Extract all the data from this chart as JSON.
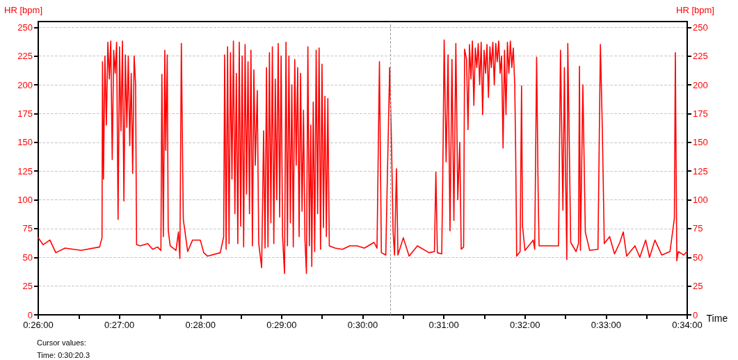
{
  "chart_data": {
    "type": "line",
    "xlabel": "Time",
    "ylabel": "HR [bpm]",
    "y2label": "HR [bpm]",
    "annotations": [
      "Cursor values:",
      "Time: 0:30:20.3"
    ],
    "xlim": [
      0.43333,
      0.56667
    ],
    "xticks": [
      {
        "value": 0.43333,
        "label": "0:26:00"
      },
      {
        "value": 0.44167,
        "label": null
      },
      {
        "value": 0.45,
        "label": "0:27:00"
      },
      {
        "value": 0.45833,
        "label": null
      },
      {
        "value": 0.46667,
        "label": "0:28:00"
      },
      {
        "value": 0.475,
        "label": null
      },
      {
        "value": 0.48333,
        "label": "0:29:00"
      },
      {
        "value": 0.49167,
        "label": null
      },
      {
        "value": 0.5,
        "label": "0:30:00"
      },
      {
        "value": 0.50833,
        "label": null
      },
      {
        "value": 0.51667,
        "label": "0:31:00"
      },
      {
        "value": 0.525,
        "label": null
      },
      {
        "value": 0.53333,
        "label": "0:32:00"
      },
      {
        "value": 0.54167,
        "label": null
      },
      {
        "value": 0.55,
        "label": "0:33:00"
      },
      {
        "value": 0.55833,
        "label": null
      },
      {
        "value": 0.56667,
        "label": "0:34:00"
      }
    ],
    "ylim": [
      0,
      255
    ],
    "yticks": [
      0,
      25,
      50,
      75,
      100,
      125,
      150,
      175,
      200,
      225,
      250
    ],
    "y2lim": [
      0,
      255
    ],
    "y2ticks": [
      0,
      25,
      50,
      75,
      100,
      125,
      150,
      175,
      200,
      225,
      250
    ],
    "grid": "y",
    "marker": "none",
    "line_style": "solid",
    "ref_lines": [
      {
        "axis": "x",
        "value": 0.50564,
        "label": null,
        "color": "#a0a0a0",
        "line_style": "dashed"
      }
    ],
    "series": [
      {
        "color": "#ff0000",
        "x": [
          0.43333,
          0.43433,
          0.43573,
          0.43693,
          0.43883,
          0.44213,
          0.44593,
          0.44643,
          0.44653,
          0.44673,
          0.44703,
          0.44733,
          0.44763,
          0.44793,
          0.44823,
          0.44853,
          0.44883,
          0.44913,
          0.44943,
          0.44973,
          0.45003,
          0.45033,
          0.45063,
          0.45093,
          0.45123,
          0.45153,
          0.45183,
          0.45213,
          0.45243,
          0.45273,
          0.45303,
          0.45333,
          0.45353,
          0.45433,
          0.45583,
          0.45683,
          0.45783,
          0.45853,
          0.45873,
          0.45903,
          0.45933,
          0.45953,
          0.45983,
          0.46003,
          0.46043,
          0.46163,
          0.46213,
          0.46243,
          0.46273,
          0.46313,
          0.46403,
          0.46503,
          0.46663,
          0.46733,
          0.46813,
          0.47073,
          0.47143,
          0.47163,
          0.47193,
          0.47223,
          0.47253,
          0.47283,
          0.47313,
          0.47343,
          0.47373,
          0.47403,
          0.47433,
          0.47463,
          0.47493,
          0.47523,
          0.47553,
          0.47583,
          0.47613,
          0.47643,
          0.47673,
          0.47703,
          0.47733,
          0.47763,
          0.47793,
          0.47833,
          0.47863,
          0.47923,
          0.47963,
          0.47993,
          0.48023,
          0.48053,
          0.48083,
          0.48113,
          0.48143,
          0.48173,
          0.48203,
          0.48233,
          0.48263,
          0.48293,
          0.48323,
          0.48353,
          0.48393,
          0.48423,
          0.48453,
          0.48483,
          0.48513,
          0.48543,
          0.48573,
          0.48603,
          0.48633,
          0.48663,
          0.48693,
          0.48723,
          0.48753,
          0.48783,
          0.48813,
          0.48843,
          0.48873,
          0.48903,
          0.48933,
          0.48953,
          0.48983,
          0.49013,
          0.49043,
          0.49073,
          0.49103,
          0.49133,
          0.49163,
          0.49193,
          0.49223,
          0.49253,
          0.49283,
          0.49313,
          0.49433,
          0.49583,
          0.49733,
          0.49883,
          0.50033,
          0.50233,
          0.50293,
          0.50343,
          0.50383,
          0.50473,
          0.50553,
          0.50593,
          0.50623,
          0.50653,
          0.50693,
          0.50723,
          0.50833,
          0.50953,
          0.51123,
          0.51363,
          0.51473,
          0.51503,
          0.51533,
          0.51623,
          0.51643,
          0.51673,
          0.51713,
          0.51753,
          0.51793,
          0.51833,
          0.51873,
          0.51913,
          0.51953,
          0.51993,
          0.52023,
          0.52073,
          0.52093,
          0.52133,
          0.52163,
          0.52193,
          0.52223,
          0.52253,
          0.52283,
          0.52313,
          0.52343,
          0.52373,
          0.52403,
          0.52433,
          0.52463,
          0.52493,
          0.52523,
          0.52553,
          0.52583,
          0.52613,
          0.52643,
          0.52673,
          0.52703,
          0.52733,
          0.52763,
          0.52793,
          0.52823,
          0.52853,
          0.52883,
          0.52913,
          0.52943,
          0.52973,
          0.53003,
          0.53033,
          0.53063,
          0.53093,
          0.53123,
          0.53143,
          0.53163,
          0.53233,
          0.53263,
          0.53283,
          0.53333,
          0.53503,
          0.53533,
          0.53573,
          0.53603,
          0.53623,
          0.54023,
          0.54063,
          0.54113,
          0.54143,
          0.54163,
          0.54193,
          0.54213,
          0.54253,
          0.54273,
          0.54383,
          0.54433,
          0.54453,
          0.54473,
          0.54503,
          0.54523,
          0.54573,
          0.54663,
          0.54833,
          0.54883,
          0.54923,
          0.54963,
          0.55073,
          0.55173,
          0.55283,
          0.55353,
          0.55423,
          0.55593,
          0.55693,
          0.55813,
          0.55893,
          0.56003,
          0.56143,
          0.56313,
          0.56403,
          0.56423,
          0.56453,
          0.56483,
          0.56593,
          0.56663
        ],
        "values": [
          67,
          61,
          65,
          54,
          58,
          56,
          59,
          67,
          220,
          118,
          225,
          165,
          237,
          205,
          238,
          135,
          230,
          210,
          237,
          83,
          233,
          160,
          238,
          99,
          226,
          163,
          225,
          147,
          210,
          123,
          225,
          200,
          61,
          60,
          62,
          57,
          59,
          56,
          209,
          68,
          230,
          143,
          226,
          74,
          60,
          56,
          72,
          49,
          236,
          83,
          55,
          65,
          65,
          54,
          51,
          54,
          68,
          226,
          57,
          233,
          62,
          228,
          118,
          238,
          88,
          210,
          62,
          237,
          77,
          225,
          59,
          235,
          105,
          220,
          88,
          230,
          60,
          213,
          130,
          195,
          62,
          41,
          160,
          58,
          215,
          59,
          228,
          80,
          233,
          62,
          205,
          100,
          236,
          85,
          225,
          68,
          36,
          237,
          60,
          225,
          80,
          200,
          59,
          222,
          130,
          215,
          68,
          210,
          90,
          178,
          65,
          36,
          233,
          60,
          165,
          42,
          185,
          55,
          230,
          88,
          232,
          57,
          218,
          76,
          190,
          68,
          188,
          60,
          58,
          57,
          60,
          60,
          58,
          63,
          58,
          220,
          54,
          52,
          215,
          145,
          73,
          52,
          127,
          52,
          67,
          51,
          60,
          54,
          55,
          124,
          54,
          53,
          116,
          239,
          133,
          226,
          73,
          222,
          82,
          236,
          100,
          150,
          57,
          59,
          231,
          222,
          161,
          235,
          205,
          238,
          182,
          232,
          215,
          236,
          200,
          237,
          174,
          230,
          210,
          235,
          189,
          233,
          215,
          237,
          200,
          236,
          220,
          238,
          210,
          225,
          145,
          230,
          174,
          237,
          210,
          238,
          215,
          232,
          200,
          139,
          51,
          55,
          199,
          77,
          56,
          65,
          57,
          224,
          110,
          60,
          60,
          230,
          91,
          215,
          136,
          48,
          236,
          121,
          63,
          55,
          62,
          216,
          56,
          141,
          200,
          72,
          56,
          57,
          235,
          161,
          62,
          68,
          53,
          63,
          72,
          51,
          60,
          50,
          65,
          50,
          65,
          52,
          55,
          84,
          228,
          47,
          55,
          52,
          55
        ]
      }
    ]
  }
}
